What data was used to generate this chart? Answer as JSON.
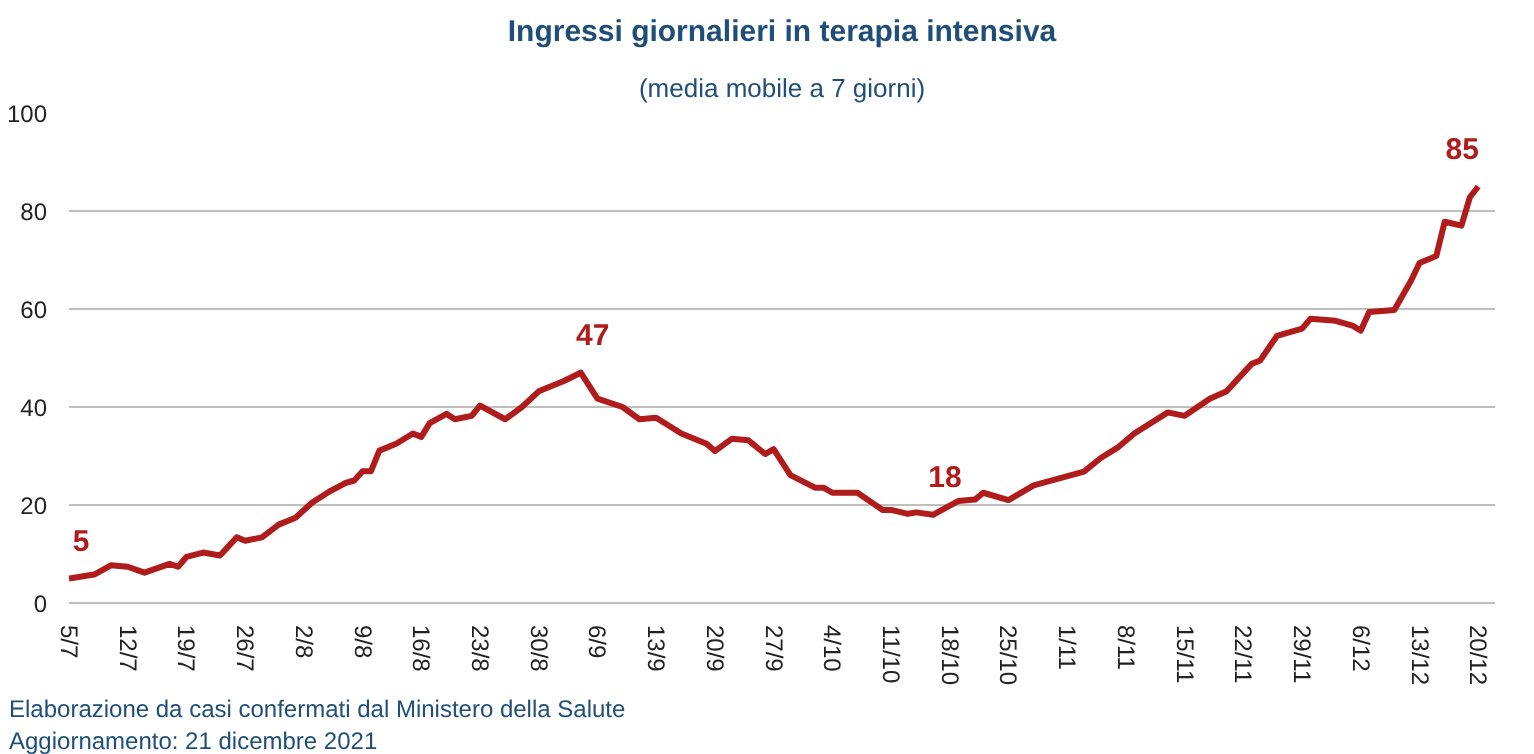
{
  "chart_data": {
    "type": "line",
    "title": "Ingressi giornalieri in terapia intensiva",
    "subtitle": "(media mobile a 7 giorni)",
    "x": [
      "2021-07-05",
      "2021-07-08",
      "2021-07-10",
      "2021-07-12",
      "2021-07-14",
      "2021-07-17",
      "2021-07-18",
      "2021-07-19",
      "2021-07-21",
      "2021-07-23",
      "2021-07-25",
      "2021-07-26",
      "2021-07-28",
      "2021-07-30",
      "2021-08-01",
      "2021-08-03",
      "2021-08-05",
      "2021-08-07",
      "2021-08-08",
      "2021-08-09",
      "2021-08-10",
      "2021-08-11",
      "2021-08-13",
      "2021-08-15",
      "2021-08-16",
      "2021-08-17",
      "2021-08-19",
      "2021-08-20",
      "2021-08-22",
      "2021-08-23",
      "2021-08-26",
      "2021-08-28",
      "2021-08-30",
      "2021-09-02",
      "2021-09-04",
      "2021-09-06",
      "2021-09-09",
      "2021-09-11",
      "2021-09-13",
      "2021-09-16",
      "2021-09-19",
      "2021-09-20",
      "2021-09-22",
      "2021-09-24",
      "2021-09-26",
      "2021-09-27",
      "2021-09-29",
      "2021-10-02",
      "2021-10-03",
      "2021-10-04",
      "2021-10-07",
      "2021-10-10",
      "2021-10-11",
      "2021-10-13",
      "2021-10-14",
      "2021-10-16",
      "2021-10-19",
      "2021-10-21",
      "2021-10-22",
      "2021-10-25",
      "2021-10-28",
      "2021-11-03",
      "2021-11-05",
      "2021-11-07",
      "2021-11-09",
      "2021-11-13",
      "2021-11-15",
      "2021-11-18",
      "2021-11-20",
      "2021-11-23",
      "2021-11-24",
      "2021-11-26",
      "2021-11-29",
      "2021-11-30",
      "2021-12-03",
      "2021-12-05",
      "2021-12-06",
      "2021-12-07",
      "2021-12-10",
      "2021-12-12",
      "2021-12-13",
      "2021-12-15",
      "2021-12-16",
      "2021-12-18",
      "2021-12-19",
      "2021-12-20"
    ],
    "series": [
      {
        "color": "#b01c1c",
        "values": [
          5,
          5.8,
          7.7,
          7.4,
          6.2,
          8,
          7.4,
          9.4,
          10.3,
          9.7,
          13.4,
          12.7,
          13.4,
          16,
          17.4,
          20.5,
          22.7,
          24.5,
          25,
          26.9,
          26.9,
          31.1,
          32.5,
          34.6,
          33.9,
          36.7,
          38.6,
          37.5,
          38.2,
          40.3,
          37.5,
          40,
          43.2,
          45.3,
          47,
          41.7,
          40,
          37.5,
          37.8,
          34.6,
          32.5,
          31,
          33.5,
          33.2,
          30.4,
          31.4,
          26.1,
          23.5,
          23.5,
          22.5,
          22.5,
          19,
          19,
          18.2,
          18.5,
          18,
          20.8,
          21.1,
          22.5,
          21,
          24,
          26.8,
          29.6,
          31.7,
          34.6,
          38.9,
          38.2,
          41.7,
          43.2,
          48.8,
          49.5,
          54.5,
          56,
          58,
          57.6,
          56.6,
          55.6,
          59.4,
          59.8,
          65.8,
          69.4,
          70.8,
          77.8,
          77,
          82.8,
          85
        ]
      }
    ],
    "xlim": [
      "2021-07-05",
      "2021-12-22"
    ],
    "xticks": [
      {
        "value": "2021-07-05",
        "label": "5/7"
      },
      {
        "value": "2021-07-12",
        "label": "12/7"
      },
      {
        "value": "2021-07-19",
        "label": "19/7"
      },
      {
        "value": "2021-07-26",
        "label": "26/7"
      },
      {
        "value": "2021-08-02",
        "label": "2/8"
      },
      {
        "value": "2021-08-09",
        "label": "9/8"
      },
      {
        "value": "2021-08-16",
        "label": "16/8"
      },
      {
        "value": "2021-08-23",
        "label": "23/8"
      },
      {
        "value": "2021-08-30",
        "label": "30/8"
      },
      {
        "value": "2021-09-06",
        "label": "6/9"
      },
      {
        "value": "2021-09-13",
        "label": "13/9"
      },
      {
        "value": "2021-09-20",
        "label": "20/9"
      },
      {
        "value": "2021-09-27",
        "label": "27/9"
      },
      {
        "value": "2021-10-04",
        "label": "4/10"
      },
      {
        "value": "2021-10-11",
        "label": "11/10"
      },
      {
        "value": "2021-10-18",
        "label": "18/10"
      },
      {
        "value": "2021-10-25",
        "label": "25/10"
      },
      {
        "value": "2021-11-01",
        "label": "1/11"
      },
      {
        "value": "2021-11-08",
        "label": "8/11"
      },
      {
        "value": "2021-11-15",
        "label": "15/11"
      },
      {
        "value": "2021-11-22",
        "label": "22/11"
      },
      {
        "value": "2021-11-29",
        "label": "29/11"
      },
      {
        "value": "2021-12-06",
        "label": "6/12"
      },
      {
        "value": "2021-12-13",
        "label": "13/12"
      },
      {
        "value": "2021-12-20",
        "label": "20/12"
      }
    ],
    "ylim": [
      0,
      100
    ],
    "yticks": [
      0,
      20,
      40,
      60,
      80,
      100
    ],
    "grid": "y",
    "annotations": [
      {
        "text": "5",
        "x": "2021-07-05",
        "y": 5
      },
      {
        "text": "47",
        "x": "2021-09-04",
        "y": 47
      },
      {
        "text": "18",
        "x": "2021-10-16",
        "y": 18
      },
      {
        "text": "85",
        "x": "2021-12-20",
        "y": 85
      },
      "Elaborazione da casi confermati dal Ministero della Salute",
      "Aggiornamento: 21 dicembre 2021"
    ]
  }
}
